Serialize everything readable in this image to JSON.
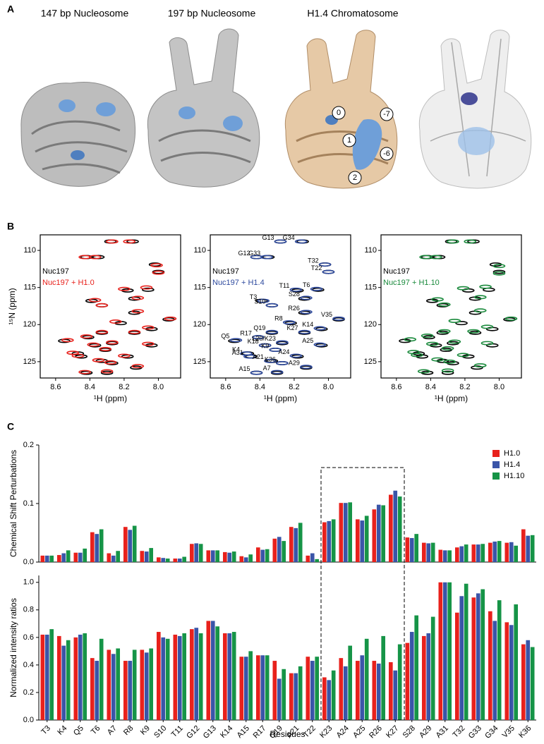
{
  "panel_labels": [
    "A",
    "B",
    "C"
  ],
  "panel_a": {
    "titles": [
      "147 bp Nucleosome",
      "197 bp Nucleosome",
      "H1.4 Chromatosome"
    ],
    "markers": [
      "0",
      "1",
      "2",
      "-7",
      "-6"
    ]
  },
  "chart_data": [
    {
      "type": "scatter",
      "xlabel": "¹H (ppm)",
      "ylabel": "¹⁵N (ppm)",
      "xlim": [
        8.69,
        7.87
      ],
      "ylim": [
        127.2,
        107.9
      ],
      "xticks": [
        8.6,
        8.4,
        8.2,
        {
          "value": 8.0,
          "label": "8.0"
        }
      ],
      "yticks": [
        110,
        115,
        120,
        125
      ],
      "series": [
        {
          "name": "Nuc197",
          "color": "#000000",
          "x": [
            8.28,
            8.15,
            8.42,
            8.35,
            8.02,
            8.0,
            8.18,
            8.06,
            8.14,
            8.39,
            8.33,
            8.14,
            7.94,
            8.22,
            8.04,
            8.33,
            8.41,
            8.14,
            8.55,
            8.27,
            8.37,
            8.31,
            8.04,
            8.47,
            8.45,
            8.18,
            8.33,
            8.27,
            8.13,
            8.42,
            8.3
          ],
          "values": [
            108.8,
            108.8,
            110.9,
            110.9,
            111.9,
            112.9,
            115.4,
            115.3,
            116.5,
            116.8,
            117.4,
            118.4,
            119.3,
            119.8,
            120.6,
            121.1,
            121.7,
            121.1,
            122.2,
            122.5,
            122.8,
            123.4,
            122.8,
            123.9,
            124.3,
            124.3,
            124.9,
            125.2,
            125.8,
            126.5,
            126.5
          ]
        },
        {
          "name": "Nuc197 + H1.0",
          "color": "#e8211c",
          "x": [
            8.27,
            8.17,
            8.43,
            8.37,
            8.01,
            8.0,
            8.2,
            8.07,
            8.12,
            8.37,
            8.33,
            8.12,
            7.93,
            8.25,
            8.06,
            8.33,
            8.42,
            8.14,
            8.53,
            8.27,
            8.38,
            8.31,
            8.06,
            8.5,
            8.47,
            8.2,
            8.35,
            8.28,
            8.12,
            8.43,
            8.3
          ],
          "values": [
            108.8,
            108.8,
            110.9,
            110.9,
            112.0,
            113.0,
            115.2,
            115.0,
            116.4,
            116.7,
            117.4,
            118.2,
            119.2,
            119.6,
            120.4,
            121.0,
            121.6,
            121.0,
            122.1,
            122.4,
            122.7,
            123.3,
            122.6,
            123.8,
            124.2,
            124.2,
            124.8,
            125.1,
            125.6,
            126.4,
            126.3
          ]
        }
      ],
      "legend": "upper left"
    },
    {
      "type": "scatter",
      "xlabel": "¹H (ppm)",
      "xlim": [
        8.69,
        7.87
      ],
      "ylim": [
        127.2,
        107.9
      ],
      "xticks": [
        8.6,
        8.4,
        8.2,
        {
          "value": 8.0,
          "label": "8.0"
        }
      ],
      "yticks": [
        110,
        115,
        120,
        125
      ],
      "series": [
        {
          "name": "Nuc197",
          "color": "#000000",
          "x": [
            8.28,
            8.15,
            8.42,
            8.35,
            8.02,
            8.0,
            8.18,
            8.06,
            8.14,
            8.39,
            8.33,
            8.14,
            7.94,
            8.22,
            8.04,
            8.33,
            8.41,
            8.14,
            8.55,
            8.27,
            8.37,
            8.31,
            8.04,
            8.47,
            8.45,
            8.18,
            8.33,
            8.27,
            8.13,
            8.42,
            8.3
          ],
          "values": [
            108.8,
            108.8,
            110.9,
            110.9,
            111.9,
            112.9,
            115.4,
            115.3,
            116.5,
            116.8,
            117.4,
            118.4,
            119.3,
            119.8,
            120.6,
            121.1,
            121.7,
            121.1,
            122.2,
            122.5,
            122.8,
            123.4,
            122.8,
            123.9,
            124.3,
            124.3,
            124.9,
            125.2,
            125.8,
            126.5,
            126.5
          ]
        },
        {
          "name": "Nuc197 + H1.4",
          "color": "#2e4a9e",
          "x": [
            8.28,
            8.16,
            8.42,
            8.36,
            8.02,
            8.0,
            8.19,
            8.07,
            8.13,
            8.38,
            8.33,
            8.13,
            7.94,
            8.23,
            8.05,
            8.33,
            8.41,
            8.14,
            8.54,
            8.27,
            8.37,
            8.31,
            8.05,
            8.48,
            8.46,
            8.19,
            8.34,
            8.27,
            8.13,
            8.42,
            8.3
          ],
          "values": [
            108.8,
            108.8,
            110.9,
            110.9,
            111.9,
            112.9,
            115.3,
            115.2,
            116.4,
            116.8,
            117.4,
            118.3,
            119.2,
            119.7,
            120.5,
            121.0,
            121.7,
            121.0,
            122.1,
            122.4,
            122.8,
            123.4,
            122.7,
            123.9,
            124.3,
            124.2,
            124.9,
            125.2,
            125.7,
            126.5,
            126.4
          ]
        }
      ],
      "point_labels": [
        "G13",
        "G34",
        "G12",
        "G33",
        "T32",
        "T22",
        "T11",
        "T6",
        "S28",
        "T3",
        "S10",
        "R26",
        "V35",
        "R8",
        "K14",
        "Q19",
        "R17",
        "K27",
        "Q5",
        "L20/K23",
        "K18",
        "K9",
        "A25",
        "K4",
        "A31",
        "A24",
        "A21",
        "K36",
        "A29",
        "A15",
        "A7"
      ],
      "legend": "upper left"
    },
    {
      "type": "scatter",
      "xlabel": "¹H (ppm)",
      "xlim": [
        8.69,
        7.87
      ],
      "ylim": [
        127.2,
        107.9
      ],
      "xticks": [
        8.6,
        8.4,
        8.2,
        {
          "value": 8.0,
          "label": "8.0"
        }
      ],
      "yticks": [
        110,
        115,
        120,
        125
      ],
      "series": [
        {
          "name": "Nuc197",
          "color": "#000000",
          "x": [
            8.28,
            8.15,
            8.42,
            8.35,
            8.02,
            8.0,
            8.18,
            8.06,
            8.14,
            8.39,
            8.33,
            8.14,
            7.94,
            8.22,
            8.04,
            8.33,
            8.41,
            8.14,
            8.55,
            8.27,
            8.37,
            8.31,
            8.04,
            8.47,
            8.45,
            8.18,
            8.33,
            8.27,
            8.13,
            8.42,
            8.3
          ],
          "values": [
            108.8,
            108.8,
            110.9,
            110.9,
            111.9,
            112.9,
            115.4,
            115.3,
            116.5,
            116.8,
            117.4,
            118.4,
            119.3,
            119.8,
            120.6,
            121.1,
            121.7,
            121.1,
            122.2,
            122.5,
            122.8,
            123.4,
            122.8,
            123.9,
            124.3,
            124.3,
            124.9,
            125.2,
            125.8,
            126.5,
            126.5
          ]
        },
        {
          "name": "Nuc197 + H1.10",
          "color": "#1a8a3c",
          "x": [
            8.27,
            8.17,
            8.43,
            8.37,
            8.0,
            8.0,
            8.21,
            8.08,
            8.11,
            8.36,
            8.32,
            8.11,
            7.93,
            8.26,
            8.07,
            8.32,
            8.42,
            8.15,
            8.52,
            8.26,
            8.39,
            8.3,
            8.07,
            8.5,
            8.48,
            8.21,
            8.36,
            8.29,
            8.11,
            8.44,
            8.3
          ],
          "values": [
            108.8,
            108.8,
            110.9,
            110.9,
            112.1,
            113.1,
            115.1,
            114.9,
            116.3,
            116.6,
            117.3,
            118.1,
            119.2,
            119.5,
            120.3,
            120.9,
            121.5,
            120.9,
            122.0,
            122.3,
            122.6,
            123.2,
            122.5,
            123.7,
            124.1,
            124.1,
            124.7,
            125.0,
            125.5,
            126.3,
            126.2
          ]
        }
      ],
      "legend": "upper left"
    },
    {
      "type": "bar",
      "ylabel": "Chemical Shift Perturbations",
      "ylim": [
        0,
        0.2
      ],
      "yticks": [
        {
          "value": 0,
          "label": "0.0"
        },
        0.1,
        0.2
      ],
      "legend": "upper right",
      "series": [
        {
          "name": "H1.0",
          "color": "#e8211c",
          "values": [
            0.011,
            0.012,
            0.016,
            0.051,
            0.015,
            0.06,
            0.019,
            0.008,
            0.006,
            0.031,
            0.02,
            0.017,
            0.01,
            0.025,
            0.04,
            0.06,
            0.011,
            0.068,
            0.101,
            0.073,
            0.09,
            0.115,
            0.042,
            0.033,
            0.021,
            0.025,
            0.03,
            0.033,
            0.033,
            0.056
          ]
        },
        {
          "name": "H1.4",
          "color": "#3a55a8",
          "values": [
            0.011,
            0.015,
            0.016,
            0.048,
            0.011,
            0.055,
            0.018,
            0.007,
            0.006,
            0.032,
            0.02,
            0.016,
            0.008,
            0.021,
            0.043,
            0.058,
            0.015,
            0.07,
            0.101,
            0.071,
            0.098,
            0.122,
            0.041,
            0.032,
            0.02,
            0.027,
            0.03,
            0.035,
            0.034,
            0.045
          ]
        },
        {
          "name": "H1.10",
          "color": "#169447",
          "values": [
            0.011,
            0.02,
            0.023,
            0.056,
            0.019,
            0.062,
            0.024,
            0.006,
            0.009,
            0.031,
            0.02,
            0.018,
            0.013,
            0.022,
            0.036,
            0.067,
            0.005,
            0.073,
            0.102,
            0.079,
            0.097,
            0.112,
            0.048,
            0.033,
            0.02,
            0.03,
            0.031,
            0.036,
            0.028,
            0.046
          ]
        }
      ]
    },
    {
      "type": "bar",
      "ylabel": "Normalized intensity ratios",
      "xlabel": "Residues",
      "ylim": [
        0,
        1.05
      ],
      "yticks": [
        {
          "value": 0,
          "label": "0.0"
        },
        0.2,
        0.4,
        0.6,
        0.8,
        {
          "value": 1.0,
          "label": "1.0"
        }
      ],
      "categories": [
        "T3",
        "K4",
        "Q5",
        "T6",
        "A7",
        "R8",
        "K9",
        "S10",
        "T11",
        "G12",
        "G13",
        "K14",
        "A15",
        "R17",
        "Q19",
        "A21",
        "T22",
        "K23",
        "A24",
        "A25",
        "R26",
        "K27",
        "S28",
        "A29",
        "A31",
        "T32",
        "G33",
        "G34",
        "V35",
        "K36"
      ],
      "series": [
        {
          "color": "#e8211c",
          "values": [
            0.62,
            0.61,
            0.6,
            0.45,
            0.51,
            0.43,
            0.51,
            0.64,
            0.62,
            0.66,
            0.72,
            0.63,
            0.46,
            0.47,
            0.43,
            0.34,
            0.46,
            0.31,
            0.45,
            0.43,
            0.43,
            0.42,
            0.56,
            0.61,
            1.0,
            0.78,
            0.89,
            0.79,
            0.71,
            0.55
          ]
        },
        {
          "color": "#3a55a8",
          "values": [
            0.62,
            0.54,
            0.62,
            0.43,
            0.48,
            0.43,
            0.49,
            0.6,
            0.61,
            0.67,
            0.72,
            0.63,
            0.46,
            0.47,
            0.3,
            0.34,
            0.43,
            0.29,
            0.39,
            0.47,
            0.41,
            0.36,
            0.64,
            0.63,
            1.0,
            0.9,
            0.92,
            0.72,
            0.69,
            0.58
          ]
        },
        {
          "color": "#169447",
          "values": [
            0.66,
            0.58,
            0.63,
            0.59,
            0.52,
            0.51,
            0.52,
            0.59,
            0.63,
            0.63,
            0.68,
            0.64,
            0.5,
            0.47,
            0.37,
            0.39,
            0.46,
            0.36,
            0.54,
            0.59,
            0.61,
            0.55,
            0.76,
            0.75,
            1.0,
            0.99,
            0.95,
            0.87,
            0.84,
            0.53
          ]
        }
      ]
    }
  ]
}
